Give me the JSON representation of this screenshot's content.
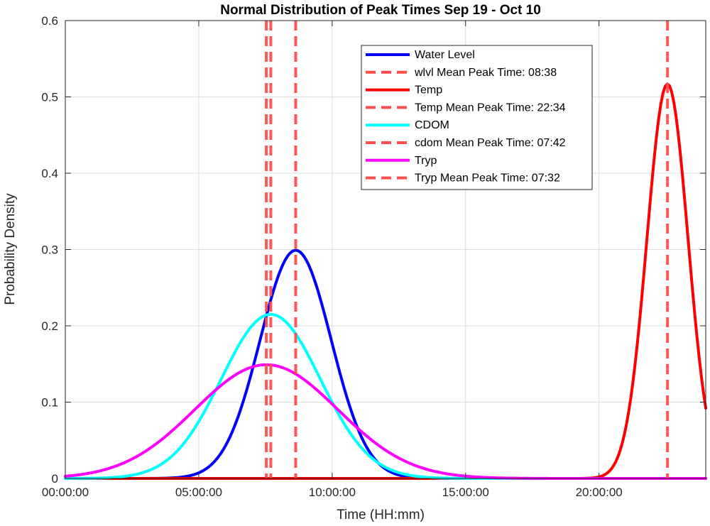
{
  "chart_data": {
    "type": "line",
    "title": "Normal Distribution of Peak Times Sep 19 - Oct 10",
    "xlabel": "Time (HH:mm)",
    "ylabel": "Probability Density",
    "x_unit": "hours",
    "xlim": [
      0,
      24
    ],
    "ylim": [
      0,
      0.6
    ],
    "xticks": [
      0,
      5,
      10,
      15,
      20
    ],
    "xtick_labels": [
      "00:00:00",
      "05:00:00",
      "10:00:00",
      "15:00:00",
      "20:00:00"
    ],
    "yticks": [
      0,
      0.1,
      0.2,
      0.3,
      0.4,
      0.5,
      0.6
    ],
    "ytick_labels": [
      "0",
      "0.1",
      "0.2",
      "0.3",
      "0.4",
      "0.5",
      "0.6"
    ],
    "grid": true,
    "legend_position": "top-right",
    "series": [
      {
        "name": "Water Level",
        "color": "#0000ff",
        "style": "solid",
        "mean": 8.633,
        "peak": 0.299,
        "x_range": [
          0,
          24
        ]
      },
      {
        "name": "Temp",
        "color": "#ff0000",
        "style": "solid",
        "mean": 22.567,
        "peak": 0.517,
        "x_range": [
          0,
          24
        ]
      },
      {
        "name": "CDOM",
        "color": "#00ffff",
        "style": "solid",
        "mean": 7.7,
        "peak": 0.215,
        "x_range": [
          0,
          24
        ]
      },
      {
        "name": "Tryp",
        "color": "#ff00ff",
        "style": "solid",
        "mean": 7.533,
        "peak": 0.149,
        "x_range": [
          0,
          24
        ]
      }
    ],
    "mean_lines": [
      {
        "name": "wlvl Mean Peak Time: 08:38",
        "x": 8.633,
        "color": "#ff4d4d",
        "style": "dashed"
      },
      {
        "name": "Temp Mean Peak Time: 22:34",
        "x": 22.567,
        "color": "#ff4d4d",
        "style": "dashed"
      },
      {
        "name": "cdom Mean Peak Time: 07:42",
        "x": 7.7,
        "color": "#ff4d4d",
        "style": "dashed"
      },
      {
        "name": "Tryp Mean Peak Time: 07:32",
        "x": 7.533,
        "color": "#ff4d4d",
        "style": "dashed"
      }
    ],
    "legend": [
      "Water Level",
      "wlvl Mean Peak Time: 08:38",
      "Temp",
      "Temp Mean Peak Time: 22:34",
      "CDOM",
      "cdom Mean Peak Time: 07:42",
      "Tryp",
      "Tryp Mean Peak Time: 07:32"
    ]
  }
}
